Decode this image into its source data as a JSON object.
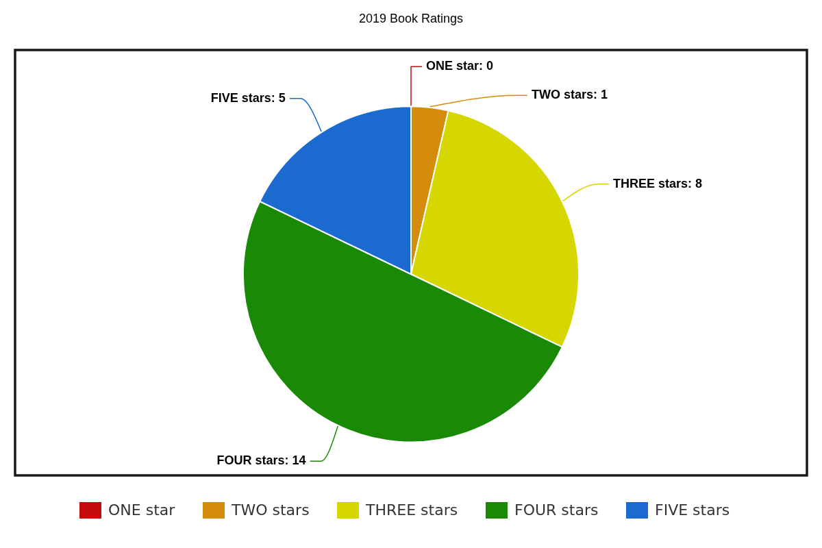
{
  "chart_data": {
    "type": "pie",
    "title": "2019 Book Ratings",
    "categories": [
      "ONE star",
      "TWO stars",
      "THREE stars",
      "FOUR stars",
      "FIVE stars"
    ],
    "values": [
      0,
      1,
      8,
      14,
      5
    ],
    "colors": [
      "#c40a0a",
      "#d48c0a",
      "#d6d600",
      "#1a8a06",
      "#1a6ad0"
    ],
    "value_labels": [
      "ONE star: 0",
      "TWO stars: 1",
      "THREE stars: 8",
      "FOUR stars: 14",
      "FIVE stars: 5"
    ],
    "legend": "bottom"
  }
}
